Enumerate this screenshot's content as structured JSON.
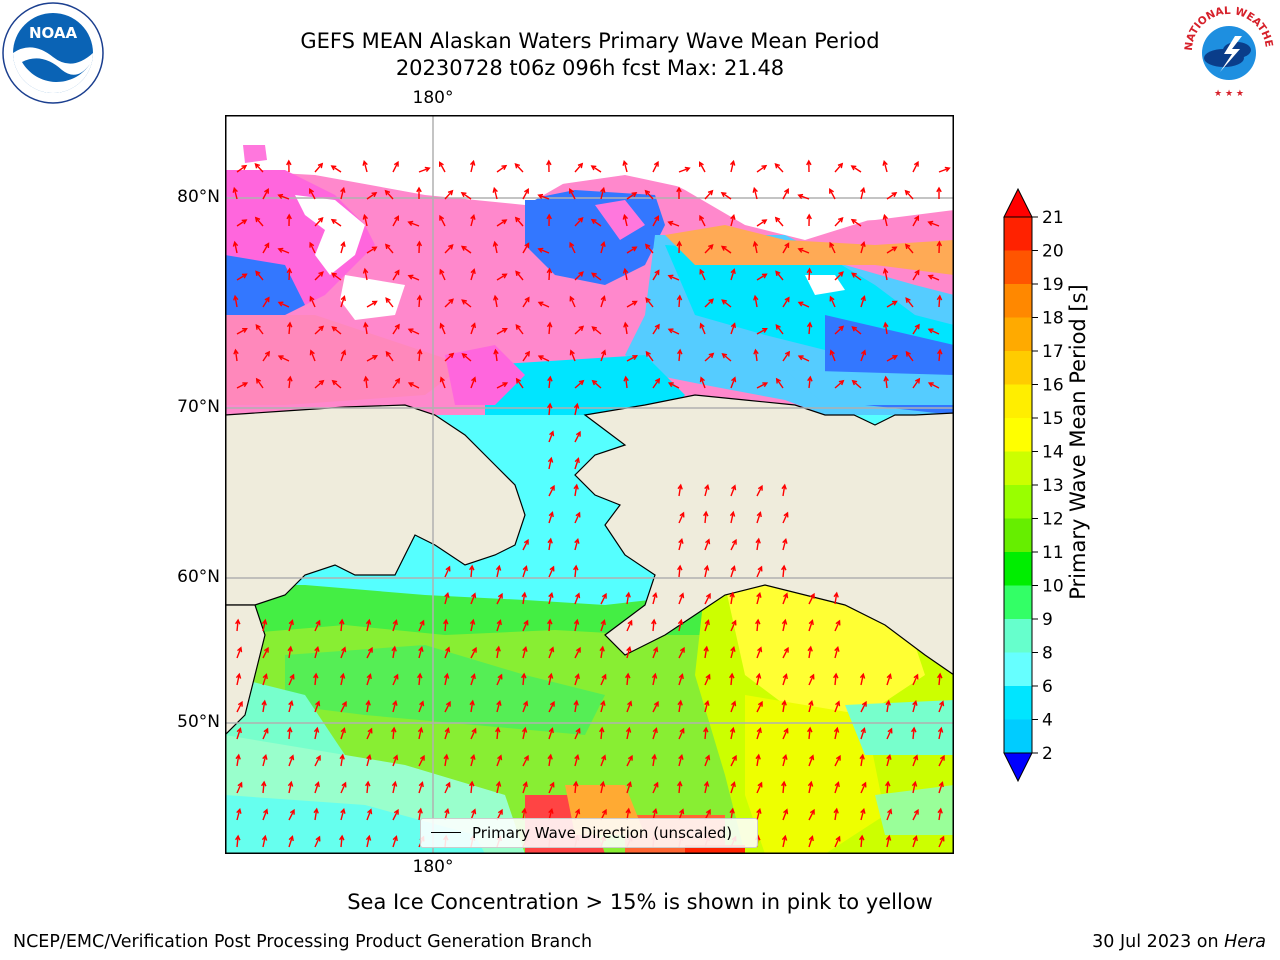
{
  "title": {
    "line1": "GEFS MEAN Alaskan Waters Primary Wave Mean Period",
    "line2": "20230728 t06z 096h fcst   Max: 21.48"
  },
  "map": {
    "lon_label_top": "180°",
    "lon_label_bottom": "180°",
    "lat_labels": [
      "80°N",
      "70°N",
      "60°N",
      "50°N"
    ],
    "land_color": "#efecdc",
    "border_color": "#000000",
    "grid_color": "#b0b0b0",
    "arrow_color": "#ff0000",
    "legend_label": "Primary Wave Direction (unscaled)"
  },
  "colorbar": {
    "title": "Primary Wave Mean Period [s]",
    "ticks": [
      "2",
      "4",
      "6",
      "8",
      "9",
      "10",
      "11",
      "12",
      "13",
      "14",
      "15",
      "16",
      "17",
      "18",
      "19",
      "20",
      "21"
    ],
    "colors": [
      "#0033ff",
      "#00ccff",
      "#00e5ff",
      "#66ffff",
      "#66ffcc",
      "#33ff66",
      "#00ee00",
      "#66ee00",
      "#99ff00",
      "#ccff00",
      "#ffff00",
      "#ffee00",
      "#ffcc00",
      "#ffaa00",
      "#ff8800",
      "#ff5500",
      "#ff2200"
    ],
    "under_color": "#0000ff",
    "over_color": "#ff0000"
  },
  "note": "Sea Ice Concentration > 15% is shown in pink to yellow",
  "footer": {
    "left": "NCEP/EMC/Verification Post Processing Product Generation Branch",
    "right_date": "30 Jul 2023 on ",
    "right_machine": "Hera"
  },
  "logos": {
    "noaa_text": "NOAA",
    "nws_text": "NATIONAL WEATHER SERVICE"
  }
}
